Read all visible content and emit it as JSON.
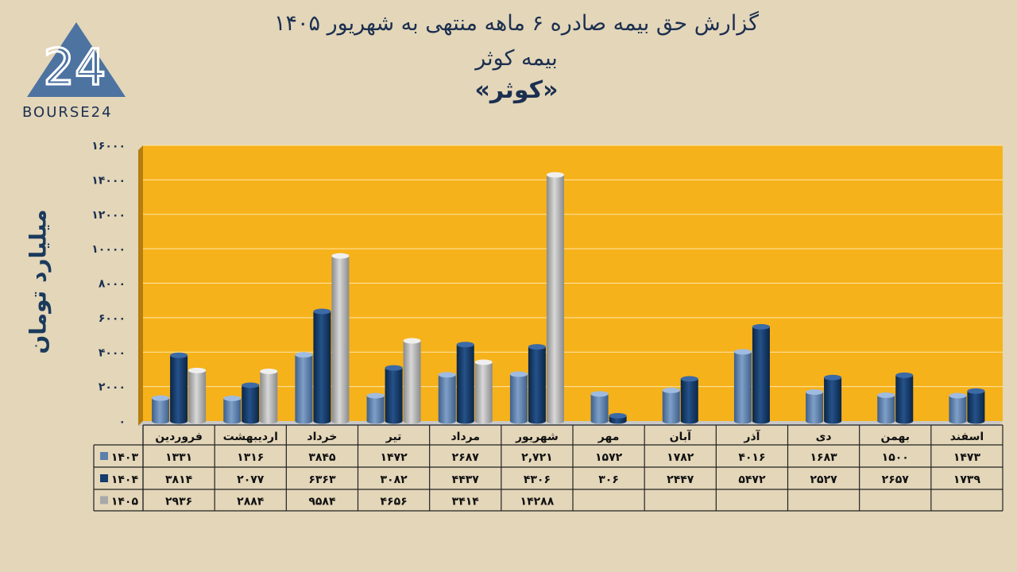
{
  "title": {
    "line1": "گزارش  حق بیمه صادره ۶ ماهه منتهی به شهریور ۱۴۰۵",
    "line2": "بیمه کوثر",
    "line3": "«کوثر»"
  },
  "logo": {
    "text": "BOURSE24",
    "number": "24"
  },
  "colors": {
    "background": "#e3d6b9",
    "plot_area": "#f6b21b",
    "series_1403": "#5b80ad",
    "series_1404": "#153c6b",
    "series_1405": "#a8a8a8"
  },
  "chart_data": {
    "type": "bar",
    "ylabel": "میلیارد تومان",
    "ylim": [
      0,
      16000
    ],
    "yticks": [
      "۰",
      "۲۰۰۰",
      "۴۰۰۰",
      "۶۰۰۰",
      "۸۰۰۰",
      "۱۰۰۰۰",
      "۱۲۰۰۰",
      "۱۴۰۰۰",
      "۱۶۰۰۰"
    ],
    "ytick_values": [
      0,
      2000,
      4000,
      6000,
      8000,
      10000,
      12000,
      14000,
      16000
    ],
    "categories": [
      "فروردین",
      "اردیبهشت",
      "خرداد",
      "تیر",
      "مرداد",
      "شهریور",
      "مهر",
      "آبان",
      "آذر",
      "دی",
      "بهمن",
      "اسفند"
    ],
    "series": [
      {
        "name": "۱۴۰۳",
        "values": [
          1331,
          1316,
          3845,
          1472,
          2687,
          2721,
          1572,
          1782,
          4016,
          1683,
          1500,
          1473
        ],
        "labels": [
          "۱۳۳۱",
          "۱۳۱۶",
          "۳۸۴۵",
          "۱۴۷۲",
          "۲۶۸۷",
          "۲,۷۲۱",
          "۱۵۷۲",
          "۱۷۸۲",
          "۴۰۱۶",
          "۱۶۸۳",
          "۱۵۰۰",
          "۱۴۷۳"
        ]
      },
      {
        "name": "۱۴۰۴",
        "values": [
          3814,
          2077,
          6363,
          3082,
          4437,
          4306,
          306,
          2447,
          5472,
          2527,
          2657,
          1739
        ],
        "labels": [
          "۳۸۱۴",
          "۲۰۷۷",
          "۶۳۶۳",
          "۳۰۸۲",
          "۴۴۳۷",
          "۴۳۰۶",
          "۳۰۶",
          "۲۴۴۷",
          "۵۴۷۲",
          "۲۵۲۷",
          "۲۶۵۷",
          "۱۷۳۹"
        ]
      },
      {
        "name": "۱۴۰۵",
        "values": [
          2936,
          2884,
          9584,
          4656,
          3414,
          14288,
          null,
          null,
          null,
          null,
          null,
          null
        ],
        "labels": [
          "۲۹۳۶",
          "۲۸۸۴",
          "۹۵۸۴",
          "۴۶۵۶",
          "۳۴۱۴",
          "۱۴۲۸۸",
          "",
          "",
          "",
          "",
          "",
          ""
        ]
      }
    ]
  }
}
